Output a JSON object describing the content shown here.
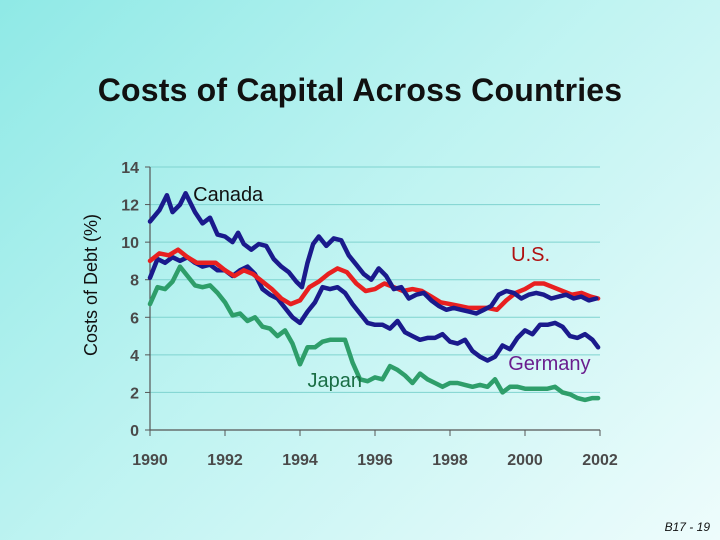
{
  "slide": {
    "title": "Costs of Capital Across Countries",
    "slide_number": "B17 - 19"
  },
  "chart_data": {
    "type": "line",
    "title": "Costs of Capital Across Countries",
    "xlabel": "",
    "ylabel": "Costs of Debt (%)",
    "xlim": [
      1990,
      2002
    ],
    "ylim": [
      0,
      14
    ],
    "x_ticks": [
      1990,
      1992,
      1994,
      1996,
      1998,
      2000,
      2002
    ],
    "y_ticks": [
      0,
      2,
      4,
      6,
      8,
      10,
      12,
      14
    ],
    "grid": true,
    "series": [
      {
        "name": "Canada",
        "color": "#1A1A8C",
        "x": [
          1990.0,
          1990.25,
          1990.45,
          1990.6,
          1990.8,
          1990.95,
          1991.2,
          1991.4,
          1991.6,
          1991.8,
          1992.0,
          1992.2,
          1992.35,
          1992.5,
          1992.7,
          1992.9,
          1993.1,
          1993.3,
          1993.5,
          1993.7,
          1993.9,
          1994.05,
          1994.2,
          1994.35,
          1994.5,
          1994.7,
          1994.9,
          1995.1,
          1995.3,
          1995.5,
          1995.7,
          1995.9,
          1996.1,
          1996.3,
          1996.5,
          1996.7,
          1996.9,
          1997.1,
          1997.3,
          1997.5,
          1997.7,
          1997.9,
          1998.1,
          1998.3,
          1998.5,
          1998.7,
          1998.9,
          1999.1,
          1999.3,
          1999.5,
          1999.7,
          1999.9,
          2000.1,
          2000.3,
          2000.5,
          2000.7,
          2000.9,
          2001.1,
          2001.3,
          2001.5,
          2001.7,
          2001.9
        ],
        "values": [
          11.1,
          11.7,
          12.5,
          11.6,
          12.0,
          12.6,
          11.6,
          11.0,
          11.3,
          10.4,
          10.3,
          10.0,
          10.5,
          9.9,
          9.6,
          9.9,
          9.8,
          9.1,
          8.7,
          8.4,
          7.9,
          7.6,
          8.9,
          9.9,
          10.3,
          9.8,
          10.2,
          10.1,
          9.3,
          8.8,
          8.3,
          8.0,
          8.6,
          8.2,
          7.5,
          7.6,
          7.0,
          7.2,
          7.3,
          6.9,
          6.6,
          6.4,
          6.5,
          6.4,
          6.3,
          6.2,
          6.4,
          6.6,
          7.2,
          7.4,
          7.3,
          7.0,
          7.2,
          7.3,
          7.2,
          7.0,
          7.1,
          7.2,
          7.0,
          7.1,
          6.9,
          7.0
        ]
      },
      {
        "name": "U.S.",
        "color": "#E82020",
        "x": [
          1990.0,
          1990.25,
          1990.5,
          1990.75,
          1991.0,
          1991.25,
          1991.5,
          1991.75,
          1992.0,
          1992.25,
          1992.5,
          1992.75,
          1993.0,
          1993.25,
          1993.5,
          1993.75,
          1994.0,
          1994.25,
          1994.5,
          1994.75,
          1995.0,
          1995.25,
          1995.5,
          1995.75,
          1996.0,
          1996.25,
          1996.5,
          1996.75,
          1997.0,
          1997.25,
          1997.5,
          1997.75,
          1998.0,
          1998.25,
          1998.5,
          1998.75,
          1999.0,
          1999.25,
          1999.5,
          1999.75,
          2000.0,
          2000.25,
          2000.5,
          2000.75,
          2001.0,
          2001.25,
          2001.5,
          2001.75,
          2001.95
        ],
        "values": [
          9.0,
          9.4,
          9.3,
          9.6,
          9.2,
          8.9,
          8.9,
          8.9,
          8.5,
          8.2,
          8.5,
          8.3,
          7.9,
          7.5,
          7.0,
          6.7,
          6.9,
          7.6,
          7.9,
          8.3,
          8.6,
          8.4,
          7.8,
          7.4,
          7.5,
          7.8,
          7.6,
          7.4,
          7.5,
          7.4,
          7.1,
          6.8,
          6.7,
          6.6,
          6.5,
          6.5,
          6.5,
          6.4,
          6.9,
          7.3,
          7.5,
          7.8,
          7.8,
          7.6,
          7.4,
          7.2,
          7.3,
          7.1,
          7.0
        ]
      },
      {
        "name": "Germany",
        "color": "#1A1A8C",
        "x": [
          1990.0,
          1990.2,
          1990.4,
          1990.6,
          1990.8,
          1991.0,
          1991.2,
          1991.4,
          1991.6,
          1991.8,
          1992.0,
          1992.2,
          1992.4,
          1992.6,
          1992.8,
          1993.0,
          1993.2,
          1993.4,
          1993.6,
          1993.8,
          1994.0,
          1994.2,
          1994.4,
          1994.6,
          1994.8,
          1995.0,
          1995.2,
          1995.4,
          1995.6,
          1995.8,
          1996.0,
          1996.2,
          1996.4,
          1996.6,
          1996.8,
          1997.0,
          1997.2,
          1997.4,
          1997.6,
          1997.8,
          1998.0,
          1998.2,
          1998.4,
          1998.6,
          1998.8,
          1999.0,
          1999.2,
          1999.4,
          1999.6,
          1999.8,
          2000.0,
          2000.2,
          2000.4,
          2000.6,
          2000.8,
          2001.0,
          2001.2,
          2001.4,
          2001.6,
          2001.8,
          2001.95
        ],
        "values": [
          8.1,
          9.1,
          8.9,
          9.2,
          9.0,
          9.2,
          8.9,
          8.7,
          8.8,
          8.5,
          8.5,
          8.2,
          8.5,
          8.7,
          8.3,
          7.5,
          7.2,
          7.0,
          6.5,
          6.0,
          5.7,
          6.3,
          6.8,
          7.6,
          7.5,
          7.6,
          7.3,
          6.7,
          6.2,
          5.7,
          5.6,
          5.6,
          5.4,
          5.8,
          5.2,
          5.0,
          4.8,
          4.9,
          4.9,
          5.1,
          4.7,
          4.6,
          4.8,
          4.2,
          3.9,
          3.7,
          3.9,
          4.5,
          4.3,
          4.9,
          5.3,
          5.1,
          5.6,
          5.6,
          5.7,
          5.5,
          5.0,
          4.9,
          5.1,
          4.8,
          4.4
        ]
      },
      {
        "name": "Japan",
        "color": "#2E9E6A",
        "x": [
          1990.0,
          1990.2,
          1990.4,
          1990.6,
          1990.8,
          1991.0,
          1991.2,
          1991.4,
          1991.6,
          1991.8,
          1992.0,
          1992.2,
          1992.4,
          1992.6,
          1992.8,
          1993.0,
          1993.2,
          1993.4,
          1993.6,
          1993.8,
          1994.0,
          1994.2,
          1994.4,
          1994.6,
          1994.8,
          1995.0,
          1995.2,
          1995.4,
          1995.6,
          1995.8,
          1996.0,
          1996.2,
          1996.4,
          1996.6,
          1996.8,
          1997.0,
          1997.2,
          1997.4,
          1997.6,
          1997.8,
          1998.0,
          1998.2,
          1998.4,
          1998.6,
          1998.8,
          1999.0,
          1999.2,
          1999.4,
          1999.6,
          1999.8,
          2000.0,
          2000.2,
          2000.4,
          2000.6,
          2000.8,
          2001.0,
          2001.2,
          2001.4,
          2001.6,
          2001.8,
          2001.95
        ],
        "values": [
          6.7,
          7.6,
          7.5,
          7.9,
          8.7,
          8.2,
          7.7,
          7.6,
          7.7,
          7.3,
          6.8,
          6.1,
          6.2,
          5.8,
          6.0,
          5.5,
          5.4,
          5.0,
          5.3,
          4.6,
          3.5,
          4.4,
          4.4,
          4.7,
          4.8,
          4.8,
          4.8,
          3.6,
          2.7,
          2.6,
          2.8,
          2.7,
          3.4,
          3.2,
          2.9,
          2.5,
          3.0,
          2.7,
          2.5,
          2.3,
          2.5,
          2.5,
          2.4,
          2.3,
          2.4,
          2.3,
          2.7,
          2.0,
          2.3,
          2.3,
          2.2,
          2.2,
          2.2,
          2.2,
          2.3,
          2.0,
          1.9,
          1.7,
          1.6,
          1.7,
          1.7
        ]
      }
    ],
    "annotations": [
      {
        "text": "Canada",
        "series": "Canada",
        "color": "#111111",
        "at": [
          1991.15,
          12.2
        ],
        "anchor": "start"
      },
      {
        "text": "U.S.",
        "series": "U.S.",
        "color": "#B01010",
        "at": [
          2000.15,
          9.0
        ],
        "anchor": "middle"
      },
      {
        "text": "Germany",
        "series": "Germany",
        "color": "#6A1E8E",
        "at": [
          2000.65,
          3.2
        ],
        "anchor": "middle"
      },
      {
        "text": "Japan",
        "series": "Japan",
        "color": "#1A6E45",
        "at": [
          1994.2,
          2.3
        ],
        "anchor": "start"
      }
    ]
  }
}
